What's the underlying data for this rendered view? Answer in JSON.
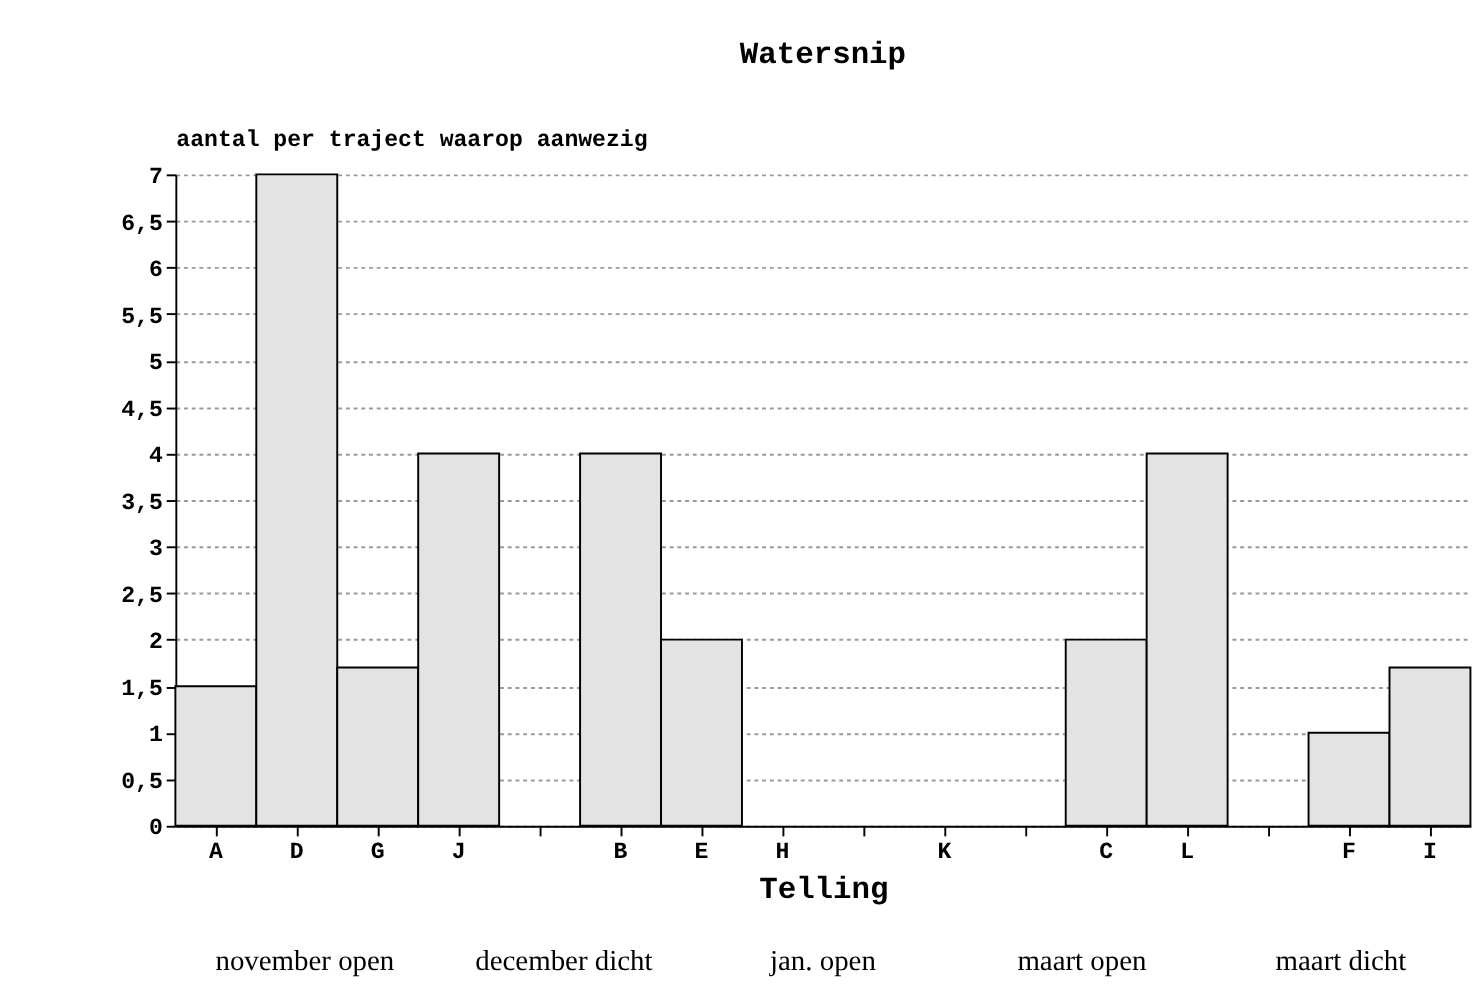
{
  "chart_data": {
    "type": "bar",
    "title": "Watersnip",
    "xlabel": "Telling",
    "ylabel": "aantal per traject waarop aanwezig",
    "categories": [
      "A",
      "D",
      "G",
      "J",
      null,
      "B",
      "E",
      "H",
      null,
      "K",
      null,
      "C",
      "L",
      null,
      "F",
      "I"
    ],
    "values": [
      1.5,
      7,
      1.7,
      4,
      null,
      4,
      2,
      0,
      null,
      0,
      null,
      2,
      4,
      null,
      1,
      1.7
    ],
    "color": "#e3e3e3",
    "ylim": [
      0,
      7
    ],
    "yticks": [
      0,
      {
        "value": 0.5,
        "label": "0,5"
      },
      1,
      {
        "value": 1.5,
        "label": "1,5"
      },
      2,
      {
        "value": 2.5,
        "label": "2,5"
      },
      3,
      {
        "value": 3.5,
        "label": "3,5"
      },
      4,
      {
        "value": 4.5,
        "label": "4,5"
      },
      5,
      {
        "value": 5.5,
        "label": "5,5"
      },
      6,
      {
        "value": 6.5,
        "label": "6,5"
      },
      7
    ],
    "grid": "y",
    "annotations": [
      "november open",
      "december dicht",
      "jan. open",
      "maart open",
      "maart dicht"
    ]
  }
}
